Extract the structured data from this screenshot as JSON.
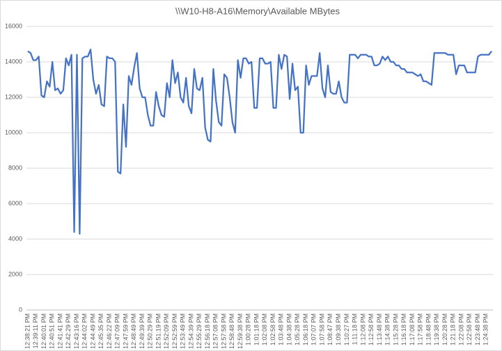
{
  "chart_data": {
    "type": "line",
    "title": "\\\\W10-H8-A16\\Memory\\Available MBytes",
    "categories": [
      "12:38:21 PM",
      null,
      null,
      "12:39:11 PM",
      null,
      null,
      "12:40:01 PM",
      null,
      null,
      "12:40:51 PM",
      null,
      null,
      "12:41:41 PM",
      null,
      null,
      "12:42:29 PM",
      null,
      null,
      "12:43:16 PM",
      null,
      null,
      "12:44:02 PM",
      null,
      null,
      "12:44:49 PM",
      null,
      null,
      "12:45:35 PM",
      null,
      null,
      "12:46:22 PM",
      null,
      null,
      "12:47:09 PM",
      null,
      null,
      "12:47:59 PM",
      null,
      null,
      "12:48:49 PM",
      null,
      null,
      "12:49:39 PM",
      null,
      null,
      "12:50:29 PM",
      null,
      null,
      "12:51:19 PM",
      null,
      null,
      "12:52:09 PM",
      null,
      null,
      "12:52:59 PM",
      null,
      null,
      "12:53:49 PM",
      null,
      null,
      "12:54:39 PM",
      null,
      null,
      "12:55:29 PM",
      null,
      null,
      "12:56:18 PM",
      null,
      null,
      "12:57:08 PM",
      null,
      null,
      "12:57:58 PM",
      null,
      null,
      "12:58:48 PM",
      null,
      null,
      "12:59:38 PM",
      null,
      null,
      "1:00:28 PM",
      null,
      null,
      "1:01:18 PM",
      null,
      null,
      "1:02:08 PM",
      null,
      null,
      "1:02:58 PM",
      null,
      null,
      "1:03:48 PM",
      null,
      null,
      "1:04:38 PM",
      null,
      null,
      "1:05:28 PM",
      null,
      null,
      "1:06:18 PM",
      null,
      null,
      "1:07:07 PM",
      null,
      null,
      "1:07:58 PM",
      null,
      null,
      "1:08:47 PM",
      null,
      null,
      "1:09:38 PM",
      null,
      null,
      "1:10:27 PM",
      null,
      null,
      "1:11:18 PM",
      null,
      null,
      "1:12:08 PM",
      null,
      null,
      "1:12:58 PM",
      null,
      null,
      "1:13:48 PM",
      null,
      null,
      "1:14:38 PM",
      null,
      null,
      "1:15:28 PM",
      null,
      null,
      "1:16:18 PM",
      null,
      null,
      "1:17:08 PM",
      null,
      null,
      "1:17:58 PM",
      null,
      null,
      "1:18:48 PM",
      null,
      null,
      "1:19:38 PM",
      null,
      null,
      "1:20:28 PM",
      null,
      null,
      "1:21:18 PM",
      null,
      null,
      "1:22:08 PM",
      null,
      null,
      "1:22:58 PM",
      null,
      null,
      "1:23:48 PM",
      null,
      null,
      "1:24:38 PM",
      null,
      null
    ],
    "values": [
      14600,
      14500,
      14100,
      14100,
      14300,
      12100,
      12000,
      12900,
      12600,
      14000,
      12400,
      12500,
      12200,
      12400,
      14200,
      13800,
      14400,
      4400,
      14400,
      4300,
      14200,
      14300,
      14300,
      14700,
      13000,
      12200,
      12700,
      11600,
      11500,
      14300,
      14200,
      14200,
      14000,
      7800,
      7700,
      11600,
      9200,
      13200,
      12700,
      13700,
      14500,
      12500,
      12000,
      12000,
      11000,
      10400,
      10400,
      12300,
      11500,
      11000,
      10900,
      12800,
      12000,
      14100,
      12800,
      13400,
      12000,
      11700,
      13100,
      11500,
      11100,
      13600,
      12500,
      12400,
      13100,
      10300,
      9600,
      9500,
      13600,
      11800,
      10600,
      10400,
      13300,
      13100,
      12000,
      10600,
      10000,
      14100,
      13100,
      14200,
      14200,
      13900,
      14000,
      11400,
      11400,
      14200,
      14200,
      13900,
      13900,
      14000,
      11400,
      11400,
      14400,
      13600,
      14400,
      14300,
      11900,
      13900,
      12400,
      12600,
      10000,
      10000,
      13800,
      12700,
      13200,
      13200,
      13200,
      14500,
      12500,
      12000,
      13800,
      12300,
      12200,
      12200,
      12900,
      12000,
      11700,
      11700,
      14400,
      14400,
      14400,
      14200,
      14400,
      14400,
      14400,
      14300,
      14300,
      13800,
      13800,
      13900,
      14300,
      14100,
      14300,
      14000,
      14000,
      13800,
      13800,
      13600,
      13600,
      13400,
      13400,
      13400,
      13300,
      13200,
      13300,
      12900,
      12900,
      12800,
      12700,
      14500,
      14500,
      14500,
      14500,
      14500,
      14400,
      14400,
      14400,
      13300,
      13800,
      13800,
      13800,
      13400,
      13400,
      13400,
      13400,
      14300,
      14400,
      14400,
      14400,
      14400,
      14600
    ],
    "color": "#4472c4",
    "ylim": [
      0,
      16000
    ],
    "yticks": [
      0,
      2000,
      4000,
      6000,
      8000,
      10000,
      12000,
      14000,
      16000
    ],
    "grid": true
  }
}
